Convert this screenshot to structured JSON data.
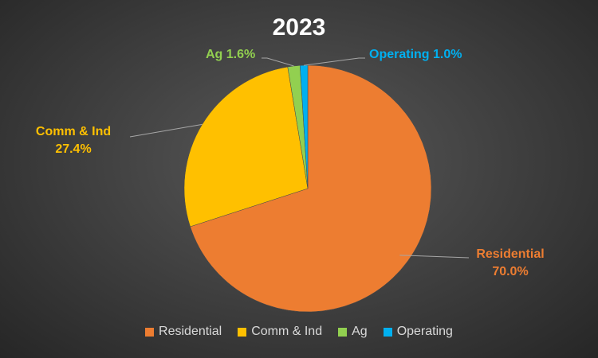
{
  "chart_data": {
    "type": "pie",
    "title": "2023",
    "categories": [
      "Residential",
      "Comm & Ind",
      "Ag",
      "Operating"
    ],
    "values": [
      70.0,
      27.4,
      1.6,
      1.0
    ],
    "data_labels": [
      "70.0%",
      "27.4%",
      "1.6%",
      "1.0%"
    ],
    "colors": [
      "#ED7D31",
      "#FFC000",
      "#92D050",
      "#00B0F0"
    ],
    "legend_position": "bottom",
    "start_angle_deg": 0,
    "direction": "clockwise"
  }
}
